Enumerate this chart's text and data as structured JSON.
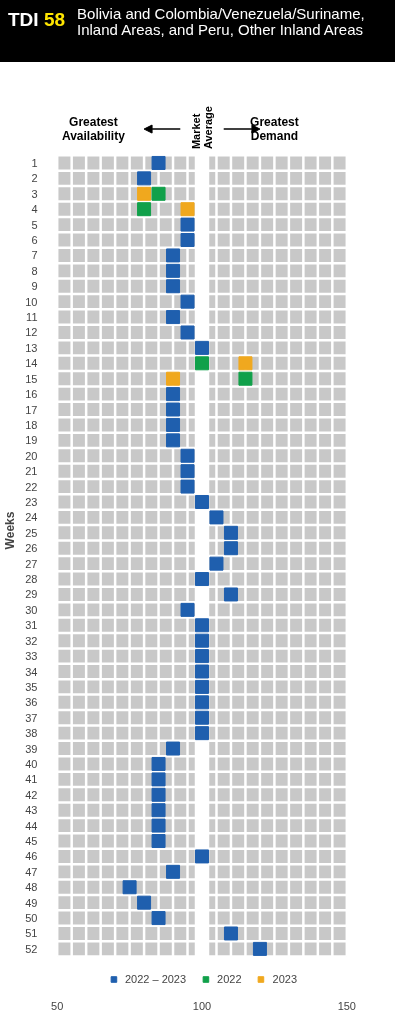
{
  "chart_data": {
    "type": "scatter",
    "title": "TDI 58",
    "subtitle": "Bolivia and Colombia/Venezuela/Suriname, Inland Areas, and Peru, Other Inland Areas",
    "ylabel": "Weeks",
    "annotations": [
      "Greatest Availability",
      "Greatest Demand"
    ],
    "orientation": "horizontal",
    "categories": [
      "1",
      "2",
      "3",
      "4",
      "5",
      "6",
      "7",
      "8",
      "9",
      "10",
      "11",
      "12",
      "13",
      "14",
      "15",
      "16",
      "17",
      "18",
      "19",
      "20",
      "21",
      "22",
      "23",
      "24",
      "25",
      "26",
      "27",
      "28",
      "29",
      "30",
      "31",
      "32",
      "33",
      "34",
      "35",
      "36",
      "37",
      "38",
      "39",
      "40",
      "41",
      "42",
      "43",
      "44",
      "45",
      "46",
      "47",
      "48",
      "49",
      "50",
      "51",
      "52"
    ],
    "series": [
      {
        "name": "2022 – 2023",
        "color": "#1f5fae",
        "values": [
          85,
          80,
          null,
          null,
          95,
          95,
          90,
          90,
          90,
          95,
          90,
          95,
          100,
          null,
          null,
          90,
          90,
          90,
          90,
          95,
          95,
          95,
          100,
          105,
          110,
          110,
          105,
          100,
          110,
          95,
          100,
          100,
          100,
          100,
          100,
          100,
          100,
          100,
          90,
          85,
          85,
          85,
          85,
          85,
          85,
          100,
          90,
          75,
          80,
          85,
          110,
          120
        ]
      },
      {
        "name": "2022",
        "color": "#10a04a",
        "values": [
          null,
          null,
          85,
          80,
          null,
          null,
          null,
          null,
          null,
          null,
          null,
          null,
          null,
          100,
          115,
          null,
          null,
          null,
          null,
          null,
          null,
          null,
          null,
          null,
          null,
          null,
          null,
          null,
          null,
          null,
          null,
          null,
          null,
          null,
          null,
          null,
          null,
          null,
          null,
          null,
          null,
          null,
          null,
          null,
          null,
          null,
          null,
          null,
          null,
          null,
          null,
          null
        ]
      },
      {
        "name": "2023",
        "color": "#f0a81e",
        "values": [
          null,
          null,
          80,
          95,
          null,
          null,
          null,
          null,
          null,
          null,
          null,
          null,
          null,
          115,
          90,
          null,
          null,
          null,
          null,
          null,
          null,
          null,
          null,
          null,
          null,
          null,
          null,
          null,
          null,
          null,
          null,
          null,
          null,
          null,
          null,
          null,
          null,
          null,
          null,
          null,
          null,
          null,
          null,
          null,
          null,
          null,
          null,
          null,
          null,
          null,
          null,
          null
        ]
      }
    ],
    "xlim": [
      50,
      150
    ],
    "xticks": [
      50,
      100,
      150
    ],
    "bands": [
      {
        "axis": "x",
        "from": 97.5,
        "to": 102.5,
        "label": "Market Average",
        "color": "#ffffff"
      }
    ],
    "grid": true,
    "marker": "square",
    "legend": "bottom"
  }
}
